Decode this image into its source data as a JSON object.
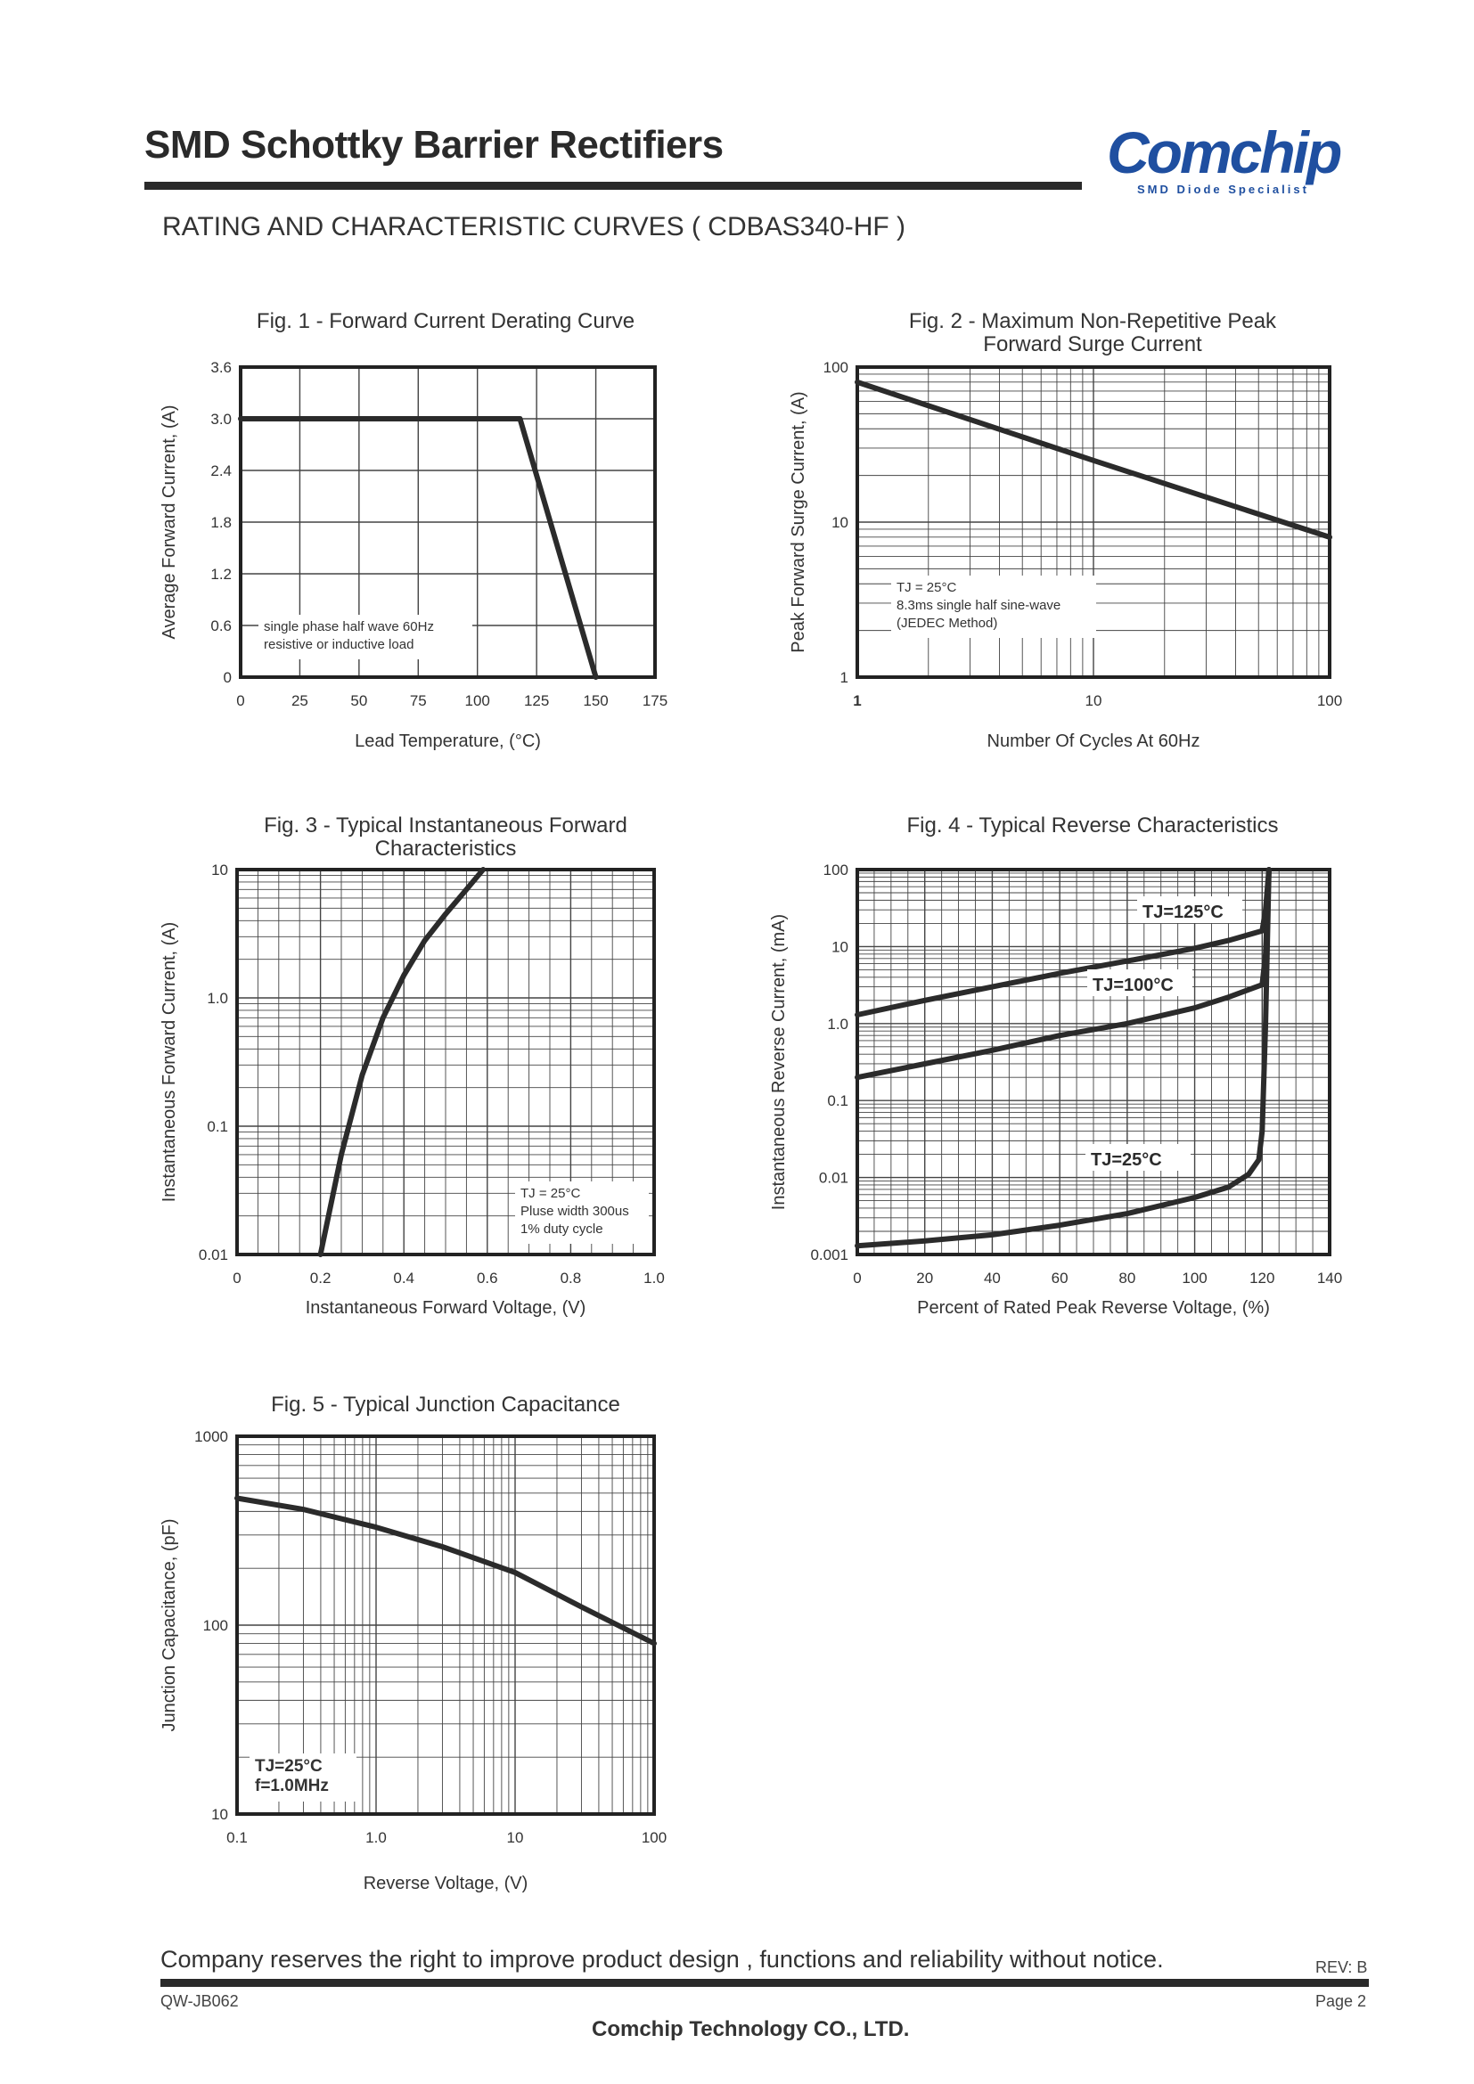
{
  "header": {
    "title": "SMD Schottky Barrier Rectifiers",
    "subtitle": "RATING AND CHARACTERISTIC CURVES ( CDBAS340-HF )",
    "logo_text": "Comchip",
    "logo_tagline": "SMD Diode Specialist",
    "logo_color": "#1f4fa0"
  },
  "footer": {
    "note": "Company reserves the right to improve product design , functions and reliability without notice.",
    "rev": "REV: B",
    "doc_no": "QW-JB062",
    "page": "Page 2",
    "company": "Comchip Technology CO., LTD."
  },
  "chart_data": [
    {
      "type": "line",
      "title": "Fig. 1 - Forward Current Derating Curve",
      "xlabel": "Lead Temperature, (°C)",
      "ylabel": "Average Forward Current, (A)",
      "xlim": [
        0,
        175
      ],
      "ylim": [
        0,
        3.6
      ],
      "xticks": [
        0,
        25,
        50,
        75,
        100,
        125,
        150,
        175
      ],
      "yticks": [
        0,
        0.6,
        1.2,
        1.8,
        2.4,
        3.0,
        3.6
      ],
      "xtick_labels": [
        "0",
        "25",
        "50",
        "75",
        "100",
        "125",
        "150",
        "175"
      ],
      "ytick_labels": [
        "0",
        "0.6",
        "1.2",
        "1.8",
        "2.4",
        "3.0",
        "3.6"
      ],
      "series": [
        {
          "x": [
            0,
            118,
            150
          ],
          "y": [
            3.0,
            3.0,
            0
          ]
        }
      ],
      "annotation": [
        "single phase half wave 60Hz",
        "resistive or inductive load"
      ]
    },
    {
      "type": "line",
      "title": [
        "Fig. 2 - Maximum Non-Repetitive Peak",
        "Forward Surge Current"
      ],
      "xlabel": "Number Of Cycles At 60Hz",
      "ylabel": "Peak Forward Surge Current, (A)",
      "xscale": "log",
      "yscale": "log",
      "xlim": [
        1,
        100
      ],
      "ylim": [
        1,
        100
      ],
      "xtick_labels": [
        "1",
        "10",
        "100"
      ],
      "ytick_labels": [
        "1",
        "10",
        "100"
      ],
      "series": [
        {
          "x": [
            1,
            10,
            100
          ],
          "y": [
            80,
            25,
            8
          ]
        }
      ],
      "annotation": [
        "TJ = 25°C",
        "8.3ms single half sine-wave",
        "(JEDEC Method)"
      ]
    },
    {
      "type": "line",
      "title": [
        "Fig. 3 - Typical Instantaneous Forward",
        "Characteristics"
      ],
      "xlabel": "Instantaneous Forward Voltage, (V)",
      "ylabel": "Instantaneous Forward Current, (A)",
      "yscale": "log",
      "xlim": [
        0,
        1.0
      ],
      "ylim": [
        0.01,
        10
      ],
      "xticks": [
        0,
        0.2,
        0.4,
        0.6,
        0.8,
        1.0
      ],
      "xtick_labels": [
        "0",
        "0.2",
        "0.4",
        "0.6",
        "0.8",
        "1.0"
      ],
      "ytick_labels": [
        "0.01",
        "0.1",
        "1.0",
        "10"
      ],
      "series": [
        {
          "x": [
            0.2,
            0.25,
            0.3,
            0.35,
            0.4,
            0.45,
            0.5,
            0.55,
            0.59
          ],
          "y": [
            0.01,
            0.06,
            0.25,
            0.7,
            1.5,
            2.8,
            4.5,
            7.0,
            10
          ]
        }
      ],
      "annotation": [
        "TJ = 25°C",
        "Pluse width 300us",
        "1% duty cycle"
      ]
    },
    {
      "type": "line",
      "title": "Fig. 4 - Typical Reverse Characteristics",
      "xlabel": "Percent of Rated Peak Reverse Voltage, (%)",
      "ylabel": "Instantaneous Reverse Current, (mA)",
      "yscale": "log",
      "xlim": [
        0,
        140
      ],
      "ylim": [
        0.001,
        100
      ],
      "xticks": [
        0,
        20,
        40,
        60,
        80,
        100,
        120,
        140
      ],
      "xtick_labels": [
        "0",
        "20",
        "40",
        "60",
        "80",
        "100",
        "120",
        "140"
      ],
      "ytick_labels": [
        "0.001",
        "0.01",
        "0.1",
        "1.0",
        "10",
        "100"
      ],
      "series": [
        {
          "name": "TJ=125°C",
          "x": [
            0,
            20,
            40,
            60,
            80,
            100,
            110,
            120,
            121,
            122
          ],
          "y": [
            1.3,
            2.0,
            3.0,
            4.5,
            6.5,
            9.5,
            12,
            16,
            30,
            100
          ]
        },
        {
          "name": "TJ=100°C",
          "x": [
            0,
            20,
            40,
            60,
            80,
            100,
            110,
            120,
            121,
            122
          ],
          "y": [
            0.2,
            0.3,
            0.45,
            0.7,
            1.0,
            1.6,
            2.2,
            3.2,
            8,
            100
          ]
        },
        {
          "name": "TJ=25°C",
          "x": [
            0,
            20,
            40,
            60,
            80,
            100,
            110,
            116,
            119,
            120,
            121,
            122
          ],
          "y": [
            0.0013,
            0.0015,
            0.0018,
            0.0024,
            0.0034,
            0.0055,
            0.0075,
            0.011,
            0.017,
            0.04,
            1.0,
            100
          ]
        }
      ]
    },
    {
      "type": "line",
      "title": "Fig. 5 - Typical Junction Capacitance",
      "xlabel": "Reverse Voltage, (V)",
      "ylabel": "Junction Capacitance, (pF)",
      "xscale": "log",
      "yscale": "log",
      "xlim": [
        0.1,
        100
      ],
      "ylim": [
        10,
        1000
      ],
      "xtick_labels": [
        "0.1",
        "1.0",
        "10",
        "100"
      ],
      "ytick_labels": [
        "10",
        "100",
        "1000"
      ],
      "series": [
        {
          "x": [
            0.1,
            0.3,
            1.0,
            3.0,
            10,
            30,
            100
          ],
          "y": [
            470,
            410,
            330,
            260,
            190,
            125,
            80
          ]
        }
      ],
      "annotation": [
        "TJ=25°C",
        "f=1.0MHz"
      ]
    }
  ]
}
